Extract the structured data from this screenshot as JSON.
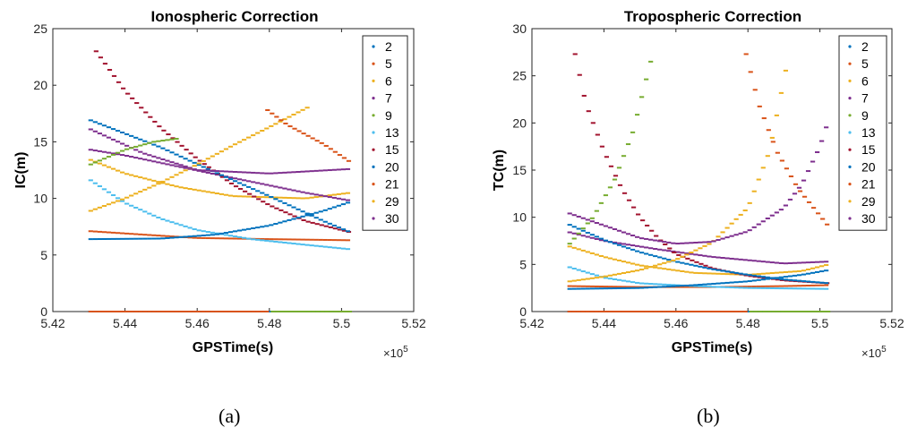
{
  "panel_labels": [
    "(a)",
    "(b)"
  ],
  "series_colors": {
    "2": "#0072BD",
    "5": "#D95319",
    "6": "#EDB120",
    "7": "#7E2F8E",
    "9": "#77AC30",
    "13": "#4DBEEE",
    "15": "#A2142F",
    "20": "#0072BD",
    "21": "#D95319",
    "29": "#EDB120",
    "30": "#7E2F8E"
  },
  "chart_data": [
    {
      "type": "scatter",
      "title": "Ionospheric Correction",
      "xlabel": "GPSTime(s)",
      "ylabel": "IC(m)",
      "x_exponent_label": "×10",
      "x_exponent_power": "5",
      "xlim": [
        5.42,
        5.52
      ],
      "ylim": [
        0,
        25
      ],
      "xticks": [
        5.42,
        5.44,
        5.46,
        5.48,
        5.5,
        5.52
      ],
      "xtick_labels": [
        "5.42",
        "5.44",
        "5.46",
        "5.48",
        "5.5",
        "5.52"
      ],
      "yticks": [
        0,
        5,
        10,
        15,
        20,
        25
      ],
      "ytick_labels": [
        "0",
        "5",
        "10",
        "15",
        "20",
        "25"
      ],
      "legend": [
        "2",
        "5",
        "6",
        "7",
        "9",
        "13",
        "15",
        "20",
        "21",
        "29",
        "30"
      ],
      "legend_position": "top-right",
      "series": [
        {
          "name": "2",
          "x": [
            5.4305,
            5.48,
            5.5025
          ],
          "y": [
            0,
            0,
            0
          ]
        },
        {
          "name": "5",
          "x": [
            5.4305,
            5.445,
            5.46,
            5.48,
            5.5025
          ],
          "y": [
            7.1,
            6.8,
            6.5,
            6.4,
            6.3
          ]
        },
        {
          "name": "6",
          "x": [
            5.4305,
            5.44,
            5.455,
            5.47,
            5.49,
            5.5025
          ],
          "y": [
            13.4,
            12.2,
            11.0,
            10.2,
            10.0,
            10.5
          ]
        },
        {
          "name": "7",
          "x": [
            5.4305,
            5.44,
            5.455,
            5.47,
            5.49,
            5.5025
          ],
          "y": [
            14.3,
            13.8,
            12.8,
            11.8,
            10.5,
            9.8
          ]
        },
        {
          "name": "9",
          "x": [
            5.481,
            5.5025
          ],
          "y": [
            0,
            0
          ]
        },
        {
          "name": "13",
          "x": [
            5.4305,
            5.44,
            5.45,
            5.46,
            5.475,
            5.49,
            5.5025
          ],
          "y": [
            11.6,
            9.6,
            8.2,
            7.2,
            6.4,
            5.9,
            5.5
          ]
        },
        {
          "name": "15",
          "x": [
            5.432,
            5.44,
            5.45,
            5.46,
            5.47,
            5.48,
            5.49,
            5.5025
          ],
          "y": [
            23.0,
            19.5,
            16.2,
            13.5,
            11.2,
            9.4,
            8.0,
            7.0
          ]
        },
        {
          "name": "20",
          "x": [
            5.4305,
            5.45,
            5.465,
            5.48,
            5.495,
            5.5025
          ],
          "y": [
            16.9,
            14.5,
            12.3,
            10.2,
            8.0,
            7.0
          ]
        },
        {
          "name": "21",
          "x": [
            5.4305,
            5.48
          ],
          "y": [
            0,
            0
          ]
        },
        {
          "name": "29",
          "x": [
            5.4305,
            5.44,
            5.45,
            5.46,
            5.47,
            5.48,
            5.491
          ],
          "y": [
            8.9,
            10.0,
            11.4,
            13.0,
            14.7,
            16.3,
            18.1
          ]
        },
        {
          "name": "30",
          "x": [
            5.4305,
            5.445,
            5.46,
            5.48,
            5.5025
          ],
          "y": [
            16.1,
            14.0,
            12.5,
            12.2,
            12.6
          ]
        },
        {
          "name": "9",
          "x": [
            5.4305,
            5.44,
            5.448,
            5.455
          ],
          "y": [
            13.0,
            14.3,
            15.0,
            15.3
          ]
        },
        {
          "name": "21",
          "x": [
            5.4795,
            5.485,
            5.495,
            5.5025
          ],
          "y": [
            17.8,
            16.5,
            14.8,
            13.2
          ]
        },
        {
          "name": "2",
          "x": [
            5.4305,
            5.45,
            5.465,
            5.48,
            5.495,
            5.5025
          ],
          "y": [
            6.4,
            6.45,
            6.8,
            7.6,
            8.9,
            9.7
          ]
        }
      ]
    },
    {
      "type": "scatter",
      "title": "Tropospheric Correction",
      "xlabel": "GPSTime(s)",
      "ylabel": "TC(m)",
      "x_exponent_label": "×10",
      "x_exponent_power": "5",
      "xlim": [
        5.42,
        5.52
      ],
      "ylim": [
        0,
        30
      ],
      "xticks": [
        5.42,
        5.44,
        5.46,
        5.48,
        5.5,
        5.52
      ],
      "xtick_labels": [
        "5.42",
        "5.44",
        "5.46",
        "5.48",
        "5.5",
        "5.52"
      ],
      "yticks": [
        0,
        5,
        10,
        15,
        20,
        25,
        30
      ],
      "ytick_labels": [
        "0",
        "5",
        "10",
        "15",
        "20",
        "25",
        "30"
      ],
      "legend": [
        "2",
        "5",
        "6",
        "7",
        "9",
        "13",
        "15",
        "20",
        "21",
        "29",
        "30"
      ],
      "legend_position": "top-right",
      "series": [
        {
          "name": "2",
          "x": [
            5.4305,
            5.48,
            5.5025
          ],
          "y": [
            0,
            0,
            0
          ]
        },
        {
          "name": "5",
          "x": [
            5.4305,
            5.45,
            5.47,
            5.49,
            5.5025
          ],
          "y": [
            2.7,
            2.6,
            2.6,
            2.7,
            2.8
          ]
        },
        {
          "name": "6",
          "x": [
            5.4305,
            5.44,
            5.45,
            5.465,
            5.48,
            5.495,
            5.5025
          ],
          "y": [
            6.9,
            5.8,
            4.9,
            4.1,
            3.9,
            4.3,
            5.0
          ]
        },
        {
          "name": "7",
          "x": [
            5.4305,
            5.44,
            5.455,
            5.47,
            5.49,
            5.5025
          ],
          "y": [
            8.4,
            7.5,
            6.6,
            5.8,
            5.1,
            5.3
          ]
        },
        {
          "name": "9",
          "x": [
            5.481,
            5.5025
          ],
          "y": [
            0,
            0
          ]
        },
        {
          "name": "13",
          "x": [
            5.4305,
            5.44,
            5.45,
            5.465,
            5.48,
            5.5025
          ],
          "y": [
            4.7,
            3.6,
            3.0,
            2.7,
            2.5,
            2.4
          ]
        },
        {
          "name": "15",
          "x": [
            5.432,
            5.435,
            5.44,
            5.445,
            5.45,
            5.455,
            5.46,
            5.47,
            5.48,
            5.49,
            5.5025
          ],
          "y": [
            27.3,
            22.0,
            17.0,
            13.0,
            10.0,
            7.8,
            6.1,
            4.6,
            3.8,
            3.3,
            3.0
          ]
        },
        {
          "name": "20",
          "x": [
            5.4305,
            5.44,
            5.45,
            5.46,
            5.47,
            5.48,
            5.49,
            5.5025
          ],
          "y": [
            9.2,
            7.6,
            6.3,
            5.3,
            4.5,
            3.9,
            3.4,
            3.0
          ]
        },
        {
          "name": "21",
          "x": [
            5.4305,
            5.48
          ],
          "y": [
            0,
            0
          ]
        },
        {
          "name": "29",
          "x": [
            5.4305,
            5.44,
            5.45,
            5.46,
            5.47,
            5.48,
            5.486,
            5.491
          ],
          "y": [
            3.2,
            3.7,
            4.4,
            5.5,
            7.3,
            11.0,
            17.0,
            26.5
          ]
        },
        {
          "name": "30",
          "x": [
            5.4305,
            5.45,
            5.46,
            5.47,
            5.48,
            5.49,
            5.495,
            5.5,
            5.5025
          ],
          "y": [
            10.4,
            7.8,
            7.2,
            7.4,
            8.5,
            11.0,
            13.5,
            17.5,
            20.4
          ]
        },
        {
          "name": "9",
          "x": [
            5.4305,
            5.437,
            5.443,
            5.448,
            5.453
          ],
          "y": [
            7.2,
            10.0,
            14.0,
            19.0,
            26.5
          ]
        },
        {
          "name": "21",
          "x": [
            5.4795,
            5.483,
            5.488,
            5.494,
            5.5025
          ],
          "y": [
            27.3,
            22.0,
            17.0,
            13.0,
            9.0
          ]
        },
        {
          "name": "2",
          "x": [
            5.4305,
            5.45,
            5.465,
            5.48,
            5.495,
            5.5025
          ],
          "y": [
            2.4,
            2.5,
            2.8,
            3.2,
            3.9,
            4.4
          ]
        }
      ]
    }
  ]
}
